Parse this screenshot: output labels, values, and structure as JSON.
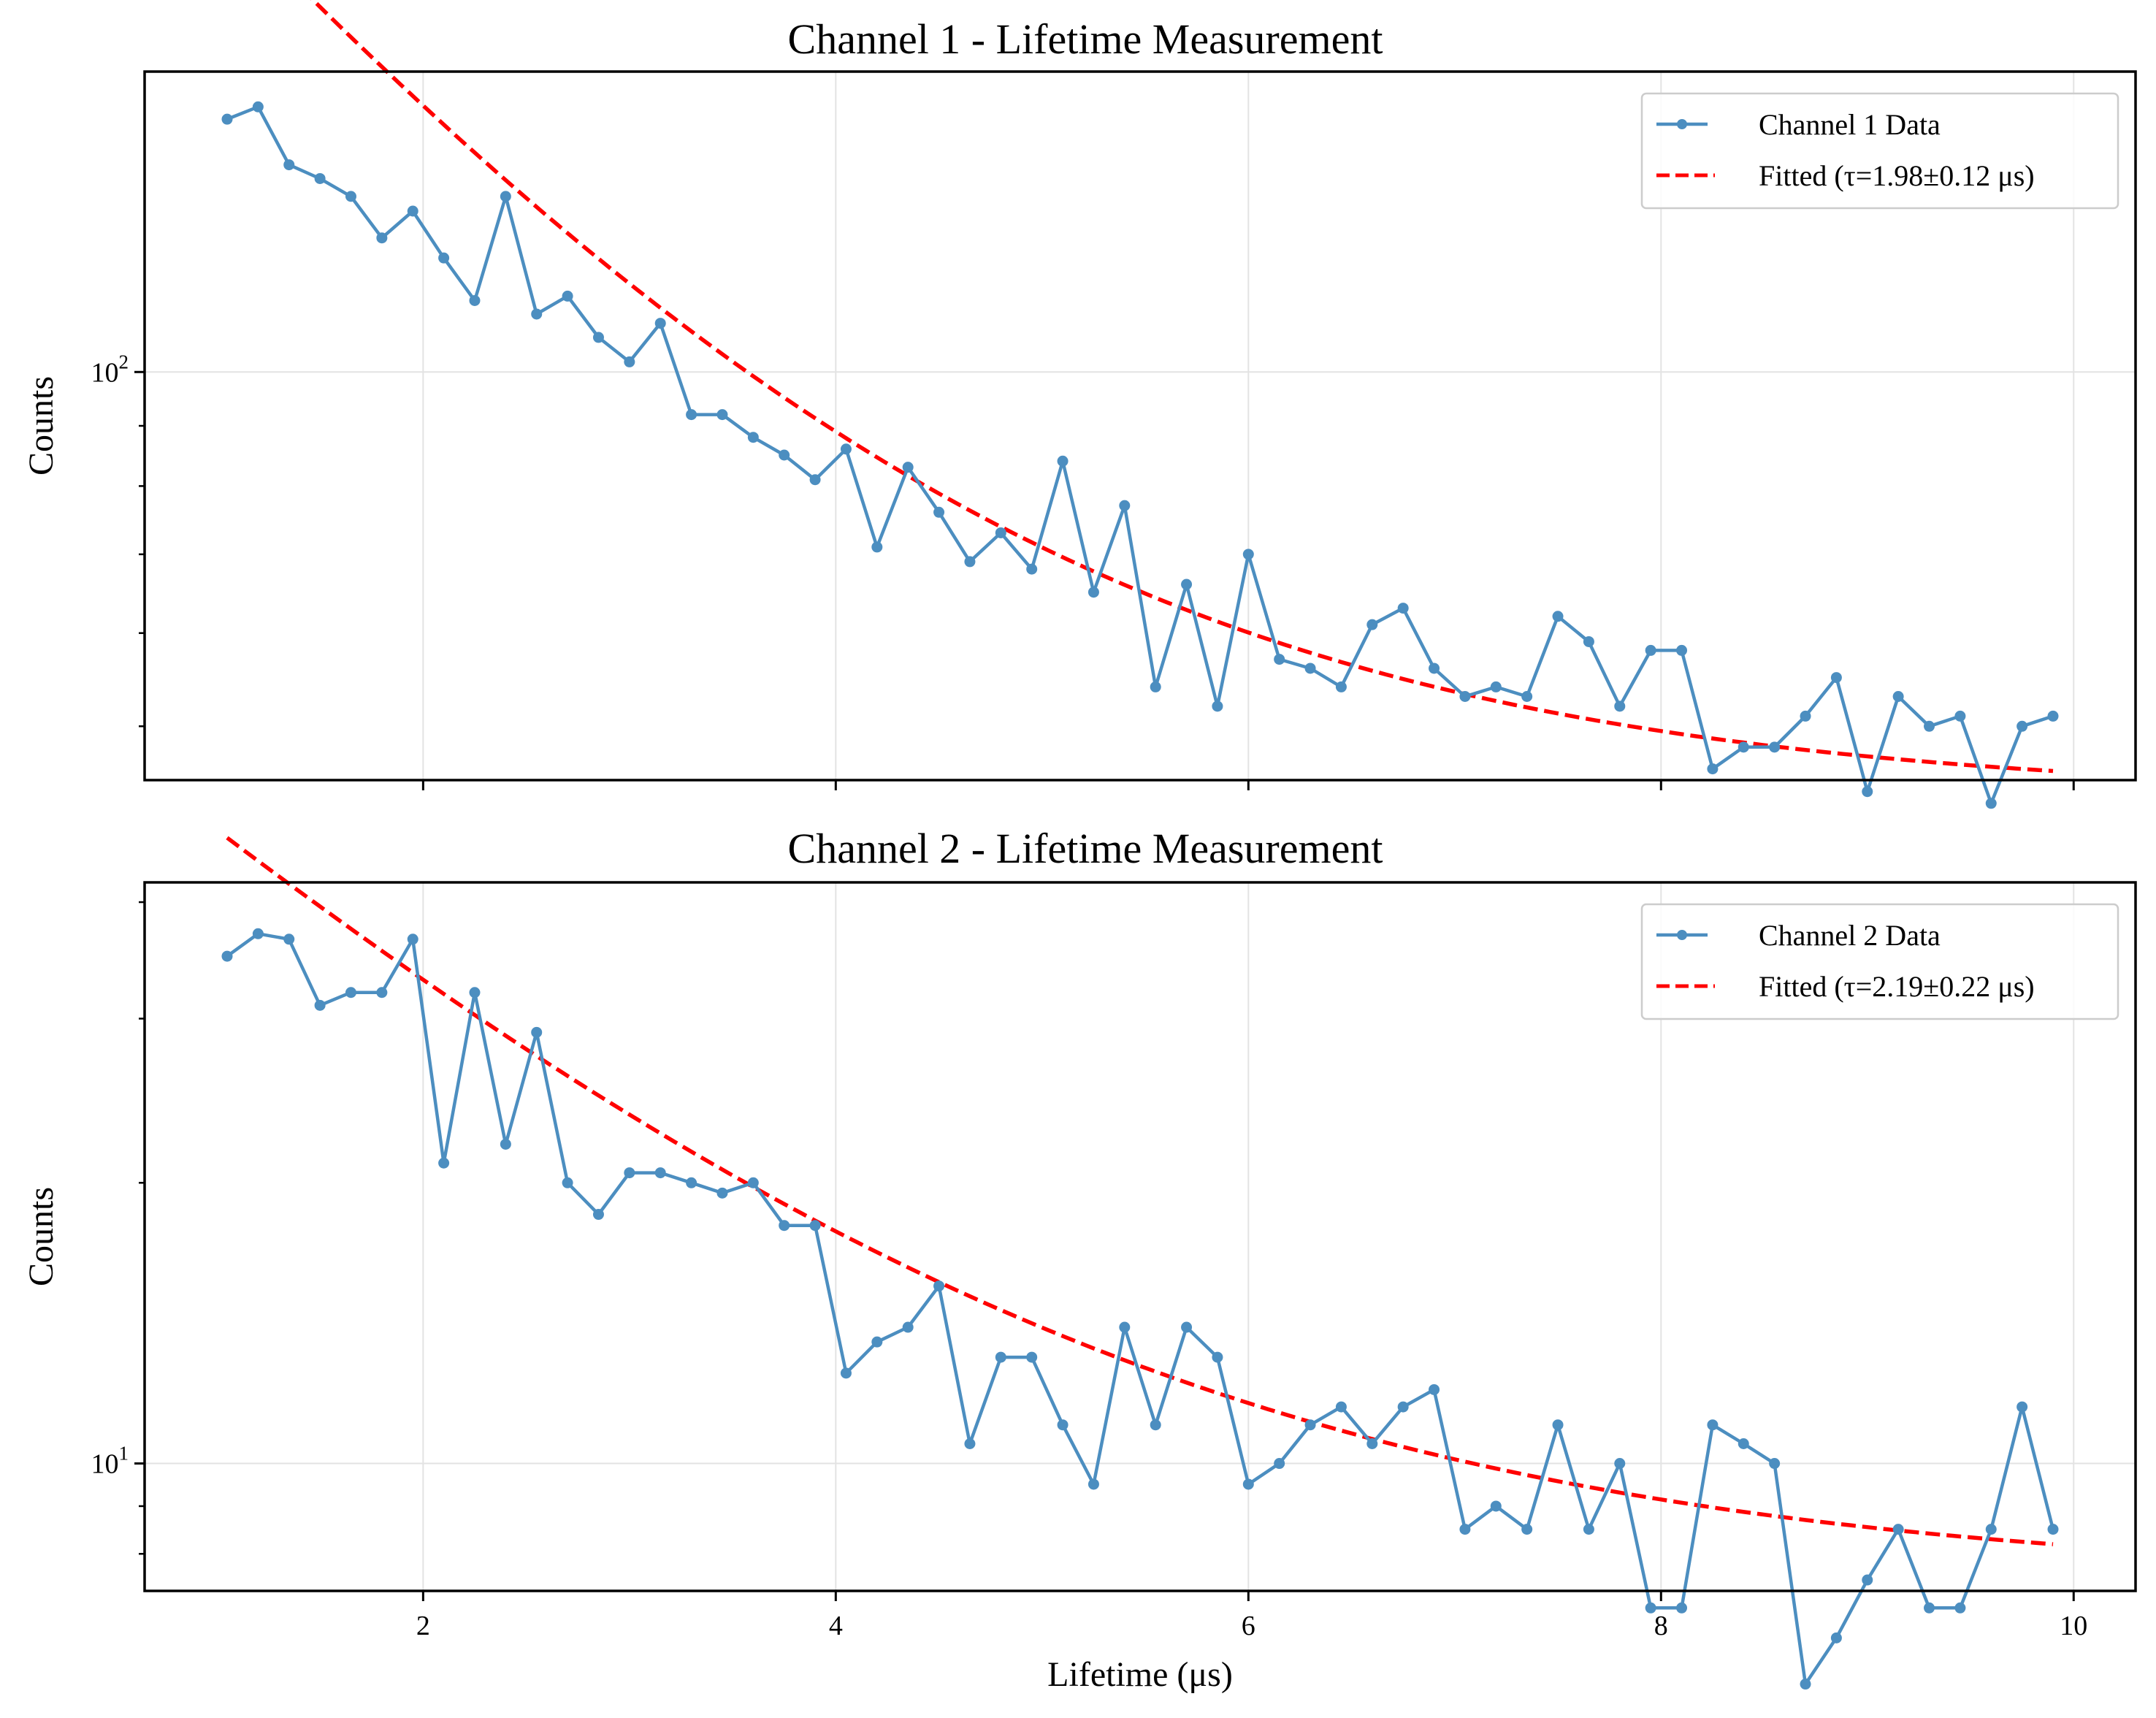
{
  "colors": {
    "data_line": "#4c8ec0",
    "fit_line": "#ff0000",
    "grid": "#e3e3e3",
    "axis": "#000000"
  },
  "chart_data": [
    {
      "type": "line",
      "title": "Channel 1 - Lifetime Measurement",
      "xlabel": "",
      "ylabel": "Counts",
      "y_scale": "log",
      "xlim": [
        0.65,
        10.3
      ],
      "ylim": [
        45,
        180
      ],
      "x_ticks": [
        2,
        4,
        6,
        8,
        10
      ],
      "x_tick_labels_visible": false,
      "y_major_ticks": [
        {
          "value": 100,
          "base": "10",
          "exp": "2"
        }
      ],
      "y_minor_ticks": [
        50,
        60,
        70,
        80,
        90
      ],
      "grid": true,
      "legend_position": "top-right",
      "series": [
        {
          "name": "Channel 1 Data",
          "style": "line-markers",
          "x": [
            1.05,
            1.2,
            1.35,
            1.5,
            1.65,
            1.8,
            1.95,
            2.1,
            2.25,
            2.4,
            2.55,
            2.7,
            2.85,
            3.0,
            3.15,
            3.3,
            3.45,
            3.6,
            3.75,
            3.9,
            4.05,
            4.2,
            4.35,
            4.5,
            4.65,
            4.8,
            4.95,
            5.1,
            5.25,
            5.4,
            5.55,
            5.7,
            5.85,
            6.0,
            6.15,
            6.3,
            6.45,
            6.6,
            6.75,
            6.9,
            7.05,
            7.2,
            7.35,
            7.5,
            7.65,
            7.8,
            7.95,
            8.1,
            8.25,
            8.4,
            8.55,
            8.7,
            8.85,
            9.0,
            9.15,
            9.3,
            9.45,
            9.6,
            9.75,
            9.9
          ],
          "values": [
            164,
            168,
            150,
            146,
            141,
            130,
            137,
            125,
            115,
            141,
            112,
            116,
            107,
            102,
            110,
            92,
            92,
            88,
            85,
            81,
            86,
            71,
            83,
            76,
            69,
            73,
            68,
            84,
            65,
            77,
            54,
            66,
            52,
            70,
            57,
            56,
            54,
            61,
            63,
            56,
            53,
            54,
            53,
            62,
            59,
            52,
            58,
            58,
            46,
            48,
            48,
            51,
            55,
            44,
            53,
            50,
            51,
            43,
            50,
            51
          ]
        },
        {
          "name": "Fitted (τ=1.98±0.12 μs)",
          "style": "dashed",
          "model": {
            "A": 207.0,
            "tau": 1.98,
            "C": 43.5
          },
          "x_range": [
            1.05,
            9.9
          ]
        }
      ]
    },
    {
      "type": "line",
      "title": "Channel 2 - Lifetime Measurement",
      "xlabel": "Lifetime (μs)",
      "ylabel": "Counts",
      "y_scale": "log",
      "xlim": [
        0.65,
        10.3
      ],
      "ylim": [
        7.3,
        42
      ],
      "x_ticks": [
        2,
        4,
        6,
        8,
        10
      ],
      "x_tick_labels_visible": true,
      "y_major_ticks": [
        {
          "value": 10,
          "base": "10",
          "exp": "1"
        }
      ],
      "y_minor_ticks": [
        8,
        9,
        20,
        30,
        40
      ],
      "grid": true,
      "legend_position": "top-right",
      "series": [
        {
          "name": "Channel 2 Data",
          "style": "line-markers",
          "x": [
            1.05,
            1.2,
            1.35,
            1.5,
            1.65,
            1.8,
            1.95,
            2.1,
            2.25,
            2.4,
            2.55,
            2.7,
            2.85,
            3.0,
            3.15,
            3.3,
            3.45,
            3.6,
            3.75,
            3.9,
            4.05,
            4.2,
            4.35,
            4.5,
            4.65,
            4.8,
            4.95,
            5.1,
            5.25,
            5.4,
            5.55,
            5.7,
            5.85,
            6.0,
            6.15,
            6.3,
            6.45,
            6.6,
            6.75,
            6.9,
            7.05,
            7.2,
            7.35,
            7.5,
            7.65,
            7.8,
            7.95,
            8.1,
            8.25,
            8.4,
            8.55,
            8.7,
            8.85,
            9.0,
            9.15,
            9.3,
            9.45,
            9.6,
            9.75,
            9.9
          ],
          "values": [
            35,
            37,
            36.5,
            31,
            32,
            32,
            36.5,
            21,
            32,
            22,
            29,
            20,
            18.5,
            20.5,
            20.5,
            20,
            19.5,
            20,
            18,
            18,
            12.5,
            13.5,
            14,
            15.5,
            10.5,
            13,
            13,
            11,
            9.5,
            14,
            11,
            14,
            13,
            9.5,
            10,
            11,
            11.5,
            10.5,
            11.5,
            12,
            8.5,
            9,
            8.5,
            11,
            8.5,
            10,
            7,
            7,
            11,
            10.5,
            10,
            5.8,
            6.5,
            7.5,
            8.5,
            7,
            7,
            8.5,
            11.5,
            8.5
          ]
        },
        {
          "name": "Fitted (τ=2.19±0.22 μs)",
          "style": "dashed",
          "model": {
            "A": 40.3,
            "tau": 2.19,
            "C": 7.5
          },
          "x_range": [
            1.05,
            9.9
          ]
        }
      ]
    }
  ]
}
